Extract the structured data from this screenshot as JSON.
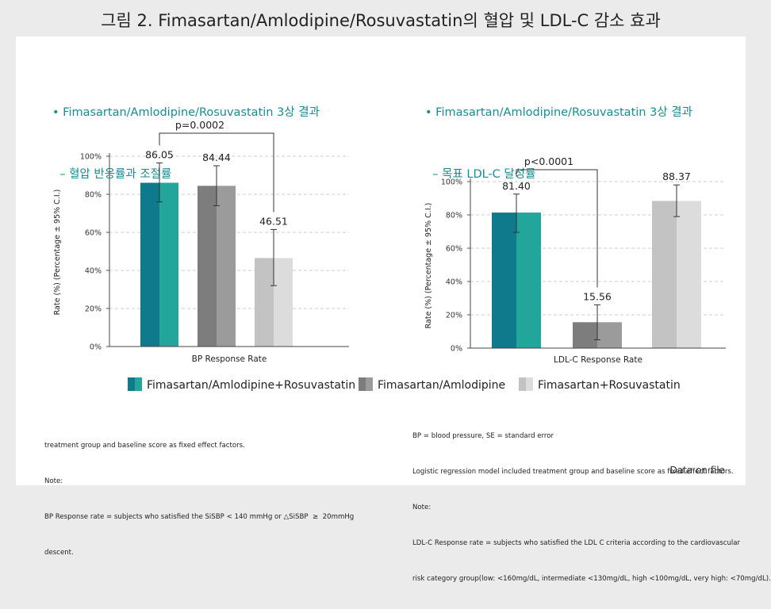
{
  "title": "그림 2. Fimasartan/Amlodipine/Rosuvastatin의  혈압 및 LDL-C 감소 효과",
  "left_subtitle": [
    "• Fimasartan/Amlodipine/Rosuvastatin 3상 결과",
    "  – 혈압 반응률과 조절률"
  ],
  "right_subtitle": [
    "• Fimasartan/Amlodipine/Rosuvastatin 3상 결과",
    "  – 목표 LDL-C 달성률"
  ],
  "legend": [
    "Fimasartan/Amlodipine+Rosuvastatin",
    "Fimasartan/Amlodipine",
    "Fimasartan+Rosuvastatin"
  ],
  "colors": {
    "teal_dark": "#0f7a8c",
    "teal_light": "#22a59b",
    "gray_dark": "#7d7d7d",
    "gray_light": "#9b9b9b",
    "lgray_dark": "#c3c3c3",
    "lgray_light": "#dcdcdc",
    "subtitle": "#1a8b93"
  },
  "chart_data": [
    {
      "type": "bar",
      "categories": [
        "Fimasartan/Amlodipine+Rosuvastatin",
        "Fimasartan/Amlodipine",
        "Fimasartan+Rosuvastatin"
      ],
      "values": [
        86.05,
        84.44,
        46.51
      ],
      "value_labels": [
        "86.05",
        "84.44",
        "46.51"
      ],
      "ci_low": [
        76,
        74,
        32
      ],
      "ci_high": [
        96.5,
        95,
        61.5
      ],
      "xlabel": "BP Response Rate",
      "ylabel": "Rate (%) (Percentage ± 95% C.I.)",
      "ylim": [
        0,
        100
      ],
      "yticks": [
        "0%",
        "20%",
        "40%",
        "60%",
        "80%",
        "100%"
      ],
      "grid": true,
      "annotation": "p=0.0002"
    },
    {
      "type": "bar",
      "categories": [
        "Fimasartan/Amlodipine+Rosuvastatin",
        "Fimasartan/Amlodipine",
        "Fimasartan+Rosuvastatin"
      ],
      "values": [
        81.4,
        15.56,
        88.37
      ],
      "value_labels": [
        "81.40",
        "15.56",
        "88.37"
      ],
      "ci_low": [
        69.5,
        5,
        79
      ],
      "ci_high": [
        92.5,
        26,
        98
      ],
      "xlabel": "LDL-C Response Rate",
      "ylabel": "Rate (%) (Percentage ± 95% C.I.)",
      "ylim": [
        0,
        100
      ],
      "yticks": [
        "0%",
        "20%",
        "40%",
        "60%",
        "80%",
        "100%"
      ],
      "grid": true,
      "annotation": "p<0.0001"
    }
  ],
  "notes_left": [
    "treatment group and baseline score as fixed effect factors.",
    "Note:",
    "BP Response rate = subjects who satisfied the SiSBP < 140 mmHg or △SiSBP  ≥  20mmHg",
    "descent."
  ],
  "notes_right": [
    "BP = blood pressure, SE = standard error",
    "Logistic regression model included treatment group and baseline score as fixed effect factors.",
    "Note:",
    "LDL-C Response rate = subjects who satisfied the LDL C criteria according to the cardiovascular",
    "risk category group(low: <160mg/dL, intermediate <130mg/dL, high <100mg/dL, very high: <70mg/dL)."
  ],
  "footer": "Data on file"
}
